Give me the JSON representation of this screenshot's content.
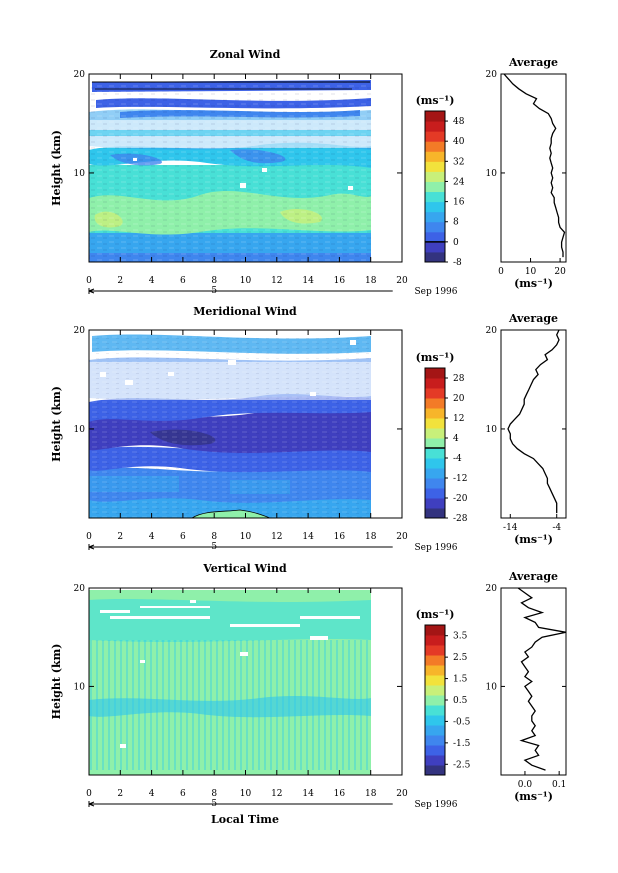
{
  "figure": {
    "xlabel": "Local Time",
    "date_label": "Sep 1996",
    "day_label": "5",
    "x_ticks": [
      "0",
      "2",
      "4",
      "6",
      "8",
      "10",
      "12",
      "14",
      "16",
      "18",
      "20"
    ],
    "xlim": [
      0,
      20
    ],
    "data_end_hour": 18
  },
  "chart_data": [
    {
      "type": "heatmap",
      "title": "Zonal Wind",
      "xlabel": "Local Time",
      "ylabel": "Height (km)",
      "xlim": [
        0,
        20
      ],
      "ylim": [
        1,
        20
      ],
      "y_ticks": [
        "10",
        "20"
      ],
      "colorbar": {
        "unit": "(ms⁻¹)",
        "labels": [
          "-8",
          "0",
          "8",
          "16",
          "24",
          "32",
          "40",
          "48"
        ],
        "range": [
          -8,
          52
        ],
        "zero_line": 0,
        "colors": [
          "#33337f",
          "#3f3fbf",
          "#3d62e6",
          "#3f86ee",
          "#37a6ef",
          "#2fc6ec",
          "#48e0d6",
          "#8ff0aa",
          "#c8f07a",
          "#f2e23c",
          "#f7b52a",
          "#f37b27",
          "#e43a26",
          "#c81d1d",
          "#a41515"
        ]
      },
      "profile": {
        "title": "Average",
        "xlabel": "(ms⁻¹)",
        "x_ticks": [
          "0",
          "10",
          "20"
        ],
        "xlim": [
          0,
          22
        ],
        "heights": [
          1.5,
          2,
          2.5,
          3,
          3.5,
          4,
          4.5,
          5,
          5.5,
          6,
          6.5,
          7,
          7.5,
          8,
          8.5,
          9,
          9.5,
          10,
          10.5,
          11,
          11.5,
          12,
          12.5,
          13,
          13.5,
          14,
          14.5,
          15,
          15.5,
          16,
          16.5,
          17,
          17.5,
          18,
          18.5,
          19,
          19.5,
          20
        ],
        "values": [
          21,
          21,
          20.5,
          20.5,
          21,
          21.5,
          20,
          19.5,
          19.5,
          19,
          18.5,
          18,
          18,
          17,
          17.5,
          17,
          17.5,
          17,
          17.5,
          17,
          16.5,
          17,
          16.5,
          17,
          17,
          17.5,
          18.5,
          17.5,
          17,
          16,
          13,
          11,
          12,
          8.5,
          6,
          4,
          2.5,
          1
        ]
      }
    },
    {
      "type": "heatmap",
      "title": "Meridional Wind",
      "xlabel": "Local Time",
      "ylabel": "Height (km)",
      "xlim": [
        0,
        20
      ],
      "ylim": [
        1,
        20
      ],
      "y_ticks": [
        "10",
        "20"
      ],
      "colorbar": {
        "unit": "(ms⁻¹)",
        "labels": [
          "-28",
          "-20",
          "-12",
          "-4",
          "4",
          "12",
          "20",
          "28"
        ],
        "range": [
          -28,
          32
        ],
        "zero_line": 0,
        "colors": [
          "#33337f",
          "#3f3fbf",
          "#3d62e6",
          "#3f86ee",
          "#37a6ef",
          "#2fc6ec",
          "#48e0d6",
          "#8ff0aa",
          "#c8f07a",
          "#f2e23c",
          "#f7b52a",
          "#f37b27",
          "#e43a26",
          "#c81d1d",
          "#a41515"
        ]
      },
      "profile": {
        "title": "Average",
        "xlabel": "(ms⁻¹)",
        "x_ticks": [
          "-14",
          "-4"
        ],
        "xlim": [
          -16,
          -2
        ],
        "heights": [
          1.5,
          2,
          2.5,
          3,
          3.5,
          4,
          4.5,
          5,
          5.5,
          6,
          6.5,
          7,
          7.5,
          8,
          8.5,
          9,
          9.5,
          10,
          10.5,
          11,
          11.5,
          12,
          12.5,
          13,
          13.5,
          14,
          14.5,
          15,
          15.5,
          16,
          16.5,
          17,
          17.5,
          18,
          18.5,
          19,
          19.5,
          20
        ],
        "values": [
          -4,
          -4,
          -4,
          -4.5,
          -5,
          -5.5,
          -6,
          -6,
          -6.5,
          -7,
          -8,
          -9,
          -11,
          -12.5,
          -13.5,
          -14,
          -14,
          -14.5,
          -14,
          -13,
          -12,
          -11.5,
          -11,
          -11,
          -10.5,
          -10,
          -9.5,
          -9,
          -8,
          -8.5,
          -7.5,
          -6,
          -6.5,
          -5,
          -4,
          -3.5,
          -4,
          -3.5
        ]
      }
    },
    {
      "type": "heatmap",
      "title": "Vertical Wind",
      "xlabel": "Local Time",
      "ylabel": "Height (km)",
      "xlim": [
        0,
        20
      ],
      "ylim": [
        1,
        20
      ],
      "y_ticks": [
        "10",
        "20"
      ],
      "colorbar": {
        "unit": "(ms⁻¹)",
        "labels": [
          "-2.5",
          "-1.5",
          "-0.5",
          "0.5",
          "1.5",
          "2.5",
          "3.5"
        ],
        "range": [
          -3,
          4
        ],
        "zero_line": null,
        "colors": [
          "#33337f",
          "#3f3fbf",
          "#3d62e6",
          "#3f86ee",
          "#37a6ef",
          "#2fc6ec",
          "#48e0d6",
          "#8ff0aa",
          "#c8f07a",
          "#f2e23c",
          "#f7b52a",
          "#f37b27",
          "#e43a26",
          "#c81d1d",
          "#a41515"
        ]
      },
      "profile": {
        "title": "Average",
        "xlabel": "(ms⁻¹)",
        "x_ticks": [
          "0.0",
          "0.1"
        ],
        "xlim": [
          -0.07,
          0.12
        ],
        "heights": [
          1.5,
          2,
          2.5,
          3,
          3.5,
          4,
          4.5,
          5,
          5.5,
          6,
          6.5,
          7,
          7.5,
          8,
          8.5,
          9,
          9.5,
          10,
          10.5,
          11,
          11.5,
          12,
          12.5,
          13,
          13.5,
          14,
          14.5,
          15,
          15.5,
          16,
          16.5,
          17,
          17.5,
          18,
          18.5,
          19,
          19.5,
          20
        ],
        "values": [
          0.06,
          0.02,
          0.0,
          0.04,
          0.03,
          0.04,
          -0.01,
          0.03,
          0.02,
          0.03,
          0.02,
          0.02,
          0.03,
          0.02,
          0.01,
          0.02,
          0.01,
          0.0,
          0.02,
          0.0,
          0.01,
          0.0,
          -0.01,
          0.01,
          0.0,
          0.02,
          0.03,
          0.05,
          0.12,
          0.04,
          0.03,
          0.0,
          0.05,
          0.01,
          -0.01,
          0.02,
          0.0,
          -0.02
        ]
      }
    }
  ]
}
